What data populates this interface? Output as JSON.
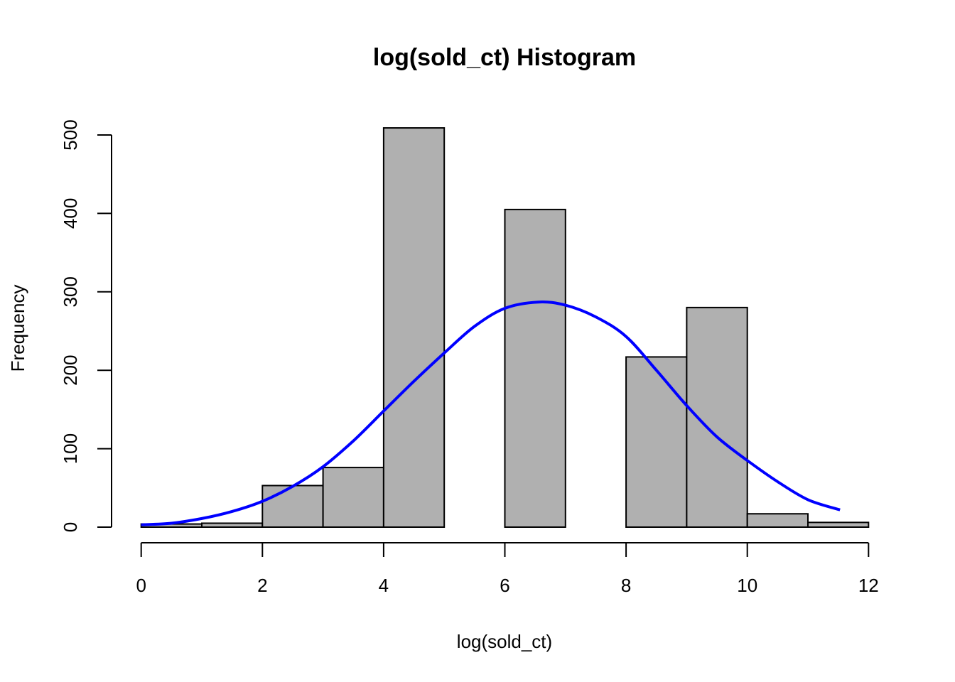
{
  "chart_data": {
    "type": "bar",
    "title": "log(sold_ct) Histogram",
    "xlabel": "log(sold_ct)",
    "ylabel": "Frequency",
    "xlim": [
      0,
      12
    ],
    "ylim": [
      0,
      500
    ],
    "x_ticks": [
      0,
      2,
      4,
      6,
      8,
      10,
      12
    ],
    "y_ticks": [
      0,
      100,
      200,
      300,
      400,
      500
    ],
    "grid": false,
    "bar_color": "#b0b0b0",
    "bins": [
      {
        "from": 0,
        "to": 1,
        "count": 4
      },
      {
        "from": 1,
        "to": 2,
        "count": 5
      },
      {
        "from": 2,
        "to": 3,
        "count": 53
      },
      {
        "from": 3,
        "to": 4,
        "count": 76
      },
      {
        "from": 4,
        "to": 5,
        "count": 509
      },
      {
        "from": 5,
        "to": 6,
        "count": 0
      },
      {
        "from": 6,
        "to": 7,
        "count": 405
      },
      {
        "from": 7,
        "to": 8,
        "count": 0
      },
      {
        "from": 8,
        "to": 9,
        "count": 217
      },
      {
        "from": 9,
        "to": 10,
        "count": 280
      },
      {
        "from": 10,
        "to": 11,
        "count": 17
      },
      {
        "from": 11,
        "to": 12,
        "count": 6
      }
    ],
    "overlay": {
      "type": "line",
      "color": "#0000ff",
      "x": [
        0.0,
        0.5,
        1.0,
        1.5,
        2.0,
        2.5,
        3.0,
        3.5,
        4.0,
        4.5,
        5.0,
        5.5,
        6.0,
        6.55,
        7.0,
        7.5,
        8.0,
        8.5,
        9.0,
        9.5,
        10.0,
        10.5,
        11.0,
        11.53
      ],
      "y": [
        3,
        5,
        11,
        20,
        33,
        52,
        77,
        110,
        148,
        186,
        222,
        256,
        279,
        287,
        283,
        268,
        243,
        200,
        155,
        115,
        85,
        58,
        35,
        22
      ]
    }
  }
}
